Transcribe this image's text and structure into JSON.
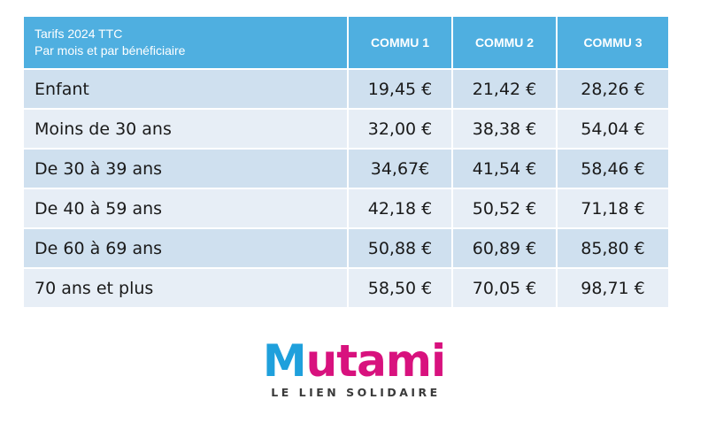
{
  "header": {
    "line1": "Tarifs 2024 TTC",
    "line2": "Par mois et par bénéficiaire",
    "columns": [
      "COMMU 1",
      "COMMU 2",
      "COMMU 3"
    ]
  },
  "rows": [
    {
      "label": "Enfant",
      "prices": [
        "19,45 €",
        "21,42 €",
        "28,26 €"
      ]
    },
    {
      "label": "Moins de 30 ans",
      "prices": [
        "32,00 €",
        "38,38 €",
        "54,04 €"
      ]
    },
    {
      "label": "De 30 à 39 ans",
      "prices": [
        "34,67€",
        "41,54 €",
        "58,46 €"
      ]
    },
    {
      "label": "De 40 à 59 ans",
      "prices": [
        "42,18 €",
        "50,52 €",
        "71,18 €"
      ]
    },
    {
      "label": "De 60 à 69 ans",
      "prices": [
        "50,88 €",
        "60,89 €",
        "85,80 €"
      ]
    },
    {
      "label": "70 ans et plus",
      "prices": [
        "58,50 €",
        "70,05 €",
        "98,71 €"
      ]
    }
  ],
  "logo": {
    "first_letter": "M",
    "rest": "utami",
    "tagline": "LE LIEN SOLIDAIRE"
  },
  "colors": {
    "header_bg": "#4fafe0",
    "row_dark": "#cfe0ef",
    "row_light": "#e7eef6",
    "logo_blue": "#1fa0dc",
    "logo_pink": "#d8127e"
  }
}
